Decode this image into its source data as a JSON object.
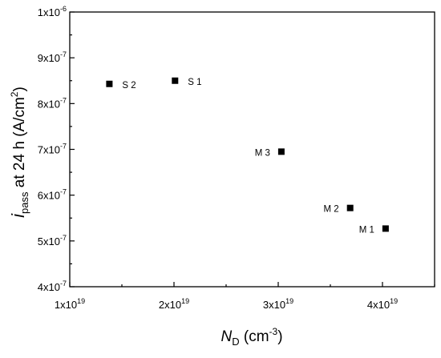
{
  "chart_data": {
    "type": "scatter",
    "xlabel": {
      "italic": "N",
      "sub": "D",
      "unit_pre": " (cm",
      "unit_sup": "-3",
      "unit_post": ")"
    },
    "ylabel": {
      "italic": "i",
      "sub": "pass",
      "text": " at 24 h (A/cm",
      "sup": "2",
      "post": ")"
    },
    "xlim": [
      1e+19,
      4.5e+19
    ],
    "ylim": [
      4e-07,
      1e-06
    ],
    "grid": false,
    "x_ticks": [
      {
        "value": 1e+19,
        "mantissa": "1x10",
        "exp": "19"
      },
      {
        "value": 2e+19,
        "mantissa": "2x10",
        "exp": "19"
      },
      {
        "value": 3e+19,
        "mantissa": "3x10",
        "exp": "19"
      },
      {
        "value": 4e+19,
        "mantissa": "4x10",
        "exp": "19"
      }
    ],
    "y_ticks": [
      {
        "value": 4e-07,
        "mantissa": "4x10",
        "exp": "-7"
      },
      {
        "value": 5e-07,
        "mantissa": "5x10",
        "exp": "-7"
      },
      {
        "value": 6e-07,
        "mantissa": "6x10",
        "exp": "-7"
      },
      {
        "value": 7e-07,
        "mantissa": "7x10",
        "exp": "-7"
      },
      {
        "value": 8e-07,
        "mantissa": "8x10",
        "exp": "-7"
      },
      {
        "value": 9e-07,
        "mantissa": "9x10",
        "exp": "-7"
      },
      {
        "value": 1e-06,
        "mantissa": "1x10",
        "exp": "-6"
      }
    ],
    "points": [
      {
        "label": "S 2",
        "x": 1.38e+19,
        "y": 8.43e-07,
        "label_side": "right"
      },
      {
        "label": "S 1",
        "x": 2.01e+19,
        "y": 8.5e-07,
        "label_side": "right"
      },
      {
        "label": "M 3",
        "x": 3.03e+19,
        "y": 6.95e-07,
        "label_side": "left"
      },
      {
        "label": "M 2",
        "x": 3.69e+19,
        "y": 5.72e-07,
        "label_side": "left"
      },
      {
        "label": "M 1",
        "x": 4.03e+19,
        "y": 5.27e-07,
        "label_side": "left"
      }
    ],
    "marker": "square",
    "marker_color": "#000000"
  }
}
